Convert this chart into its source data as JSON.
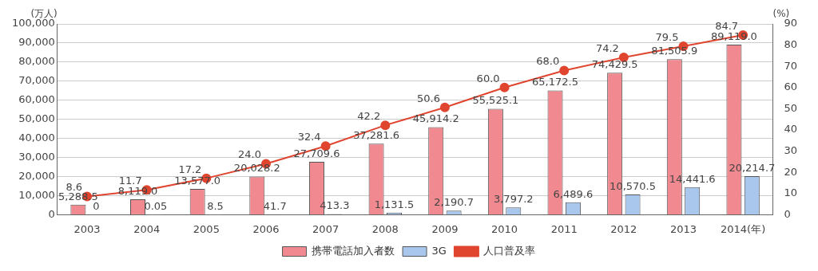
{
  "chart_data": {
    "type": "bar",
    "categories": [
      "2003",
      "2004",
      "2005",
      "2006",
      "2007",
      "2008",
      "2009",
      "2010",
      "2011",
      "2012",
      "2013",
      "2014(年)"
    ],
    "ylabel": "(万人)",
    "y2label": "(%)",
    "series": [
      {
        "name": "携帯電話加入者数",
        "color": "#f08a90",
        "values": [
          5288.5,
          8119.0,
          13577.0,
          20028.2,
          27709.6,
          37281.6,
          45914.2,
          55525.1,
          65172.5,
          74429.5,
          81505.9,
          89119.0
        ],
        "value_labels": [
          "5,288.5",
          "8,119.0",
          "13,577.0",
          "20,028.2",
          "27,709.6",
          "37,281.6",
          "45,914.2",
          "55,525.1",
          "65,172.5",
          "74,429.5",
          "81,505.9",
          "89,119.0"
        ]
      },
      {
        "name": "3G",
        "color": "#a9c7ec",
        "values": [
          0,
          0.05,
          8.5,
          41.7,
          413.3,
          1131.5,
          2190.7,
          3797.2,
          6489.6,
          10570.5,
          14441.6,
          20214.7
        ],
        "value_labels": [
          "0",
          "0.05",
          "8.5",
          "41.7",
          "413.3",
          "1,131.5",
          "2,190.7",
          "3,797.2",
          "6,489.6",
          "10,570.5",
          "14,441.6",
          "20,214.7"
        ]
      },
      {
        "name": "人口普及率",
        "type": "line",
        "axis": "y2",
        "color": "#e0452f",
        "values": [
          8.6,
          11.7,
          17.2,
          24.0,
          32.4,
          42.2,
          50.6,
          60.0,
          68.0,
          74.2,
          79.5,
          84.7
        ],
        "value_labels": [
          "8.6",
          "11.7",
          "17.2",
          "24.0",
          "32.4",
          "42.2",
          "50.6",
          "60.0",
          "68.0",
          "74.2",
          "79.5",
          "84.7"
        ]
      }
    ],
    "ylim": [
      0,
      100000
    ],
    "yticks": [
      0,
      {
        "value": 10000,
        "label": "10,000"
      },
      {
        "value": 20000,
        "label": "20,000"
      },
      {
        "value": 30000,
        "label": "30,000"
      },
      {
        "value": 40000,
        "label": "40,000"
      },
      {
        "value": 50000,
        "label": "50,000"
      },
      {
        "value": 60000,
        "label": "60,000"
      },
      {
        "value": 70000,
        "label": "70,000"
      },
      {
        "value": 80000,
        "label": "80,000"
      },
      {
        "value": 90000,
        "label": "90,000"
      },
      {
        "value": 100000,
        "label": "100,000"
      }
    ],
    "y2lim": [
      0,
      90
    ],
    "y2ticks": [
      0,
      10,
      20,
      30,
      40,
      50,
      60,
      70,
      80,
      90
    ],
    "grid": "y",
    "legend": "bottom",
    "marker": "circle"
  }
}
